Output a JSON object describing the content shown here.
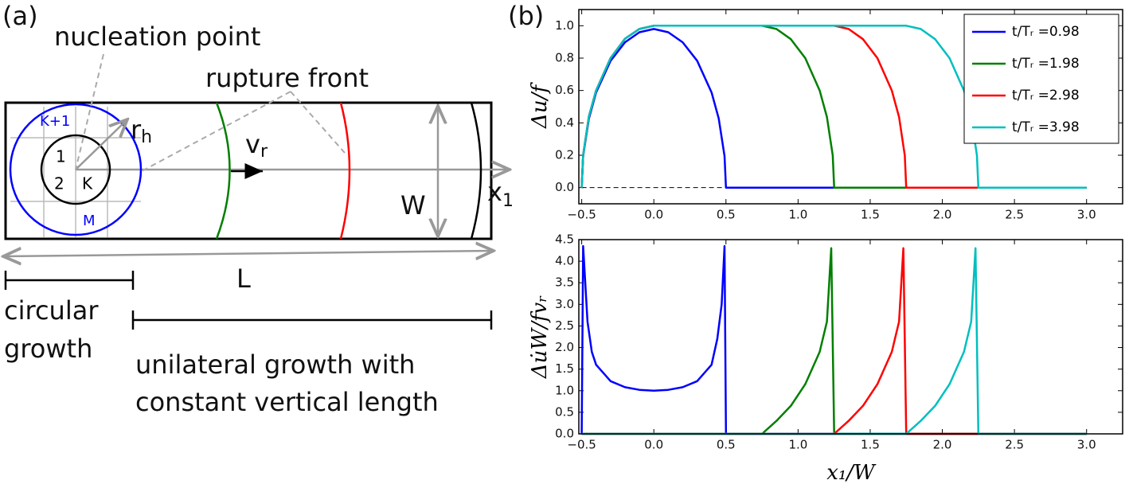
{
  "diagram": {
    "panel_label": "(a)",
    "nucleation_point": "nucleation point",
    "rupture_front": "rupture front",
    "cell_k_plus_1": "K+1",
    "cell_1": "1",
    "cell_2": "2",
    "cell_k": "K",
    "cell_m": "M",
    "r_h": {
      "base": "r",
      "sub": "h"
    },
    "v_r": {
      "base": "v",
      "sub": "r"
    },
    "width": "W",
    "x_1": {
      "base": "x",
      "sub": "1"
    },
    "length": "L",
    "circular_growth": [
      "circular",
      "growth"
    ],
    "unilateral_growth": [
      "unilateral growth with",
      "constant vertical length"
    ]
  },
  "panel_b_label": "(b)",
  "chart_data": [
    {
      "type": "line",
      "ylabel": "Δu/f",
      "xlim": [
        -0.52,
        3.25
      ],
      "ylim": [
        -0.1,
        1.1
      ],
      "xticks": [
        {
          "value": -0.5,
          "label": "−0.5"
        },
        {
          "value": 0,
          "label": "0.0"
        },
        0.5,
        {
          "value": 1,
          "label": "1.0"
        },
        1.5,
        {
          "value": 2,
          "label": "2.0"
        },
        2.5,
        {
          "value": 3,
          "label": "3.0"
        }
      ],
      "yticks": [
        {
          "value": 0,
          "label": "0.0"
        },
        0.2,
        0.4,
        0.6,
        0.8,
        {
          "value": 1,
          "label": "1.0"
        }
      ],
      "hline": 0,
      "legend": "upper right",
      "series": [
        {
          "name": "t/Tᵣ =0.98",
          "color": "#0000ff",
          "x": [
            -0.5,
            -0.49,
            -0.45,
            -0.4,
            -0.3,
            -0.2,
            -0.1,
            0,
            0.1,
            0.2,
            0.3,
            0.4,
            0.45,
            0.49,
            0.5,
            3.0
          ],
          "values": [
            0,
            0.195,
            0.427,
            0.588,
            0.784,
            0.898,
            0.96,
            0.98,
            0.96,
            0.898,
            0.784,
            0.588,
            0.427,
            0.195,
            0,
            0
          ]
        },
        {
          "name": "t/Tᵣ =1.98",
          "color": "#007f00",
          "x": [
            -0.5,
            -0.49,
            -0.45,
            -0.4,
            -0.3,
            -0.2,
            -0.1,
            0,
            0.75,
            0.85,
            0.95,
            1.05,
            1.15,
            1.2,
            1.24,
            1.25,
            3.0
          ],
          "values": [
            0,
            0.2,
            0.44,
            0.6,
            0.8,
            0.92,
            0.98,
            1.0,
            1.0,
            0.98,
            0.917,
            0.8,
            0.6,
            0.436,
            0.199,
            0,
            0
          ]
        },
        {
          "name": "t/Tᵣ =2.98",
          "color": "#ff0000",
          "x": [
            -0.5,
            -0.49,
            -0.45,
            -0.4,
            -0.3,
            -0.2,
            -0.1,
            0,
            1.25,
            1.35,
            1.45,
            1.55,
            1.65,
            1.7,
            1.74,
            1.75,
            3.0
          ],
          "values": [
            0,
            0.2,
            0.44,
            0.6,
            0.8,
            0.92,
            0.98,
            1.0,
            1.0,
            0.98,
            0.917,
            0.8,
            0.6,
            0.436,
            0.199,
            0,
            0
          ]
        },
        {
          "name": "t/Tᵣ =3.98",
          "color": "#00bfbf",
          "x": [
            -0.5,
            -0.49,
            -0.45,
            -0.4,
            -0.3,
            -0.2,
            -0.1,
            0,
            1.75,
            1.85,
            1.95,
            2.05,
            2.15,
            2.2,
            2.24,
            2.25,
            3.0
          ],
          "values": [
            0,
            0.2,
            0.44,
            0.6,
            0.8,
            0.92,
            0.98,
            1.0,
            1.0,
            0.98,
            0.917,
            0.8,
            0.6,
            0.436,
            0.199,
            0,
            0
          ]
        }
      ]
    },
    {
      "type": "line",
      "ylabel": "Δu̇W/fvᵣ",
      "xlabel": "x₁/W",
      "xlim": [
        -0.52,
        3.25
      ],
      "ylim": [
        0,
        4.5
      ],
      "xticks": [
        {
          "value": -0.5,
          "label": "−0.5"
        },
        {
          "value": 0,
          "label": "0.0"
        },
        0.5,
        {
          "value": 1,
          "label": "1.0"
        },
        1.5,
        {
          "value": 2,
          "label": "2.0"
        },
        2.5,
        {
          "value": 3,
          "label": "3.0"
        }
      ],
      "yticks": [
        {
          "value": 0,
          "label": "0.0"
        },
        0.5,
        {
          "value": 1,
          "label": "1.0"
        },
        1.5,
        {
          "value": 2,
          "label": "2.0"
        },
        2.5,
        {
          "value": 3,
          "label": "3.0"
        },
        3.5,
        {
          "value": 4,
          "label": "4.0"
        },
        4.5
      ],
      "series": [
        {
          "color": "#0000ff",
          "x": [
            -0.5,
            -0.49,
            -0.46,
            -0.43,
            -0.4,
            -0.3,
            -0.2,
            -0.1,
            0,
            0.1,
            0.2,
            0.3,
            0.4,
            0.44,
            0.47,
            0.49,
            0.5,
            3.0
          ],
          "values": [
            0,
            4.35,
            2.6,
            1.9,
            1.6,
            1.22,
            1.08,
            1.02,
            1.0,
            1.02,
            1.08,
            1.22,
            1.6,
            2.2,
            3.0,
            4.35,
            0,
            0
          ]
        },
        {
          "color": "#007f00",
          "x": [
            -0.5,
            0.75,
            0.85,
            0.95,
            1.05,
            1.15,
            1.2,
            1.23,
            1.25,
            3.0
          ],
          "values": [
            0,
            0,
            0.3,
            0.65,
            1.15,
            1.9,
            2.6,
            4.3,
            0,
            0
          ]
        },
        {
          "color": "#ff0000",
          "x": [
            -0.5,
            1.25,
            1.35,
            1.45,
            1.55,
            1.65,
            1.7,
            1.73,
            1.75,
            3.0
          ],
          "values": [
            0,
            0,
            0.3,
            0.65,
            1.15,
            1.9,
            2.6,
            4.3,
            0,
            0
          ]
        },
        {
          "color": "#00bfbf",
          "x": [
            -0.5,
            1.75,
            1.85,
            1.95,
            2.05,
            2.15,
            2.2,
            2.23,
            2.25,
            3.0
          ],
          "values": [
            0,
            0,
            0.3,
            0.65,
            1.15,
            1.9,
            2.6,
            4.3,
            0,
            0
          ]
        }
      ]
    }
  ]
}
